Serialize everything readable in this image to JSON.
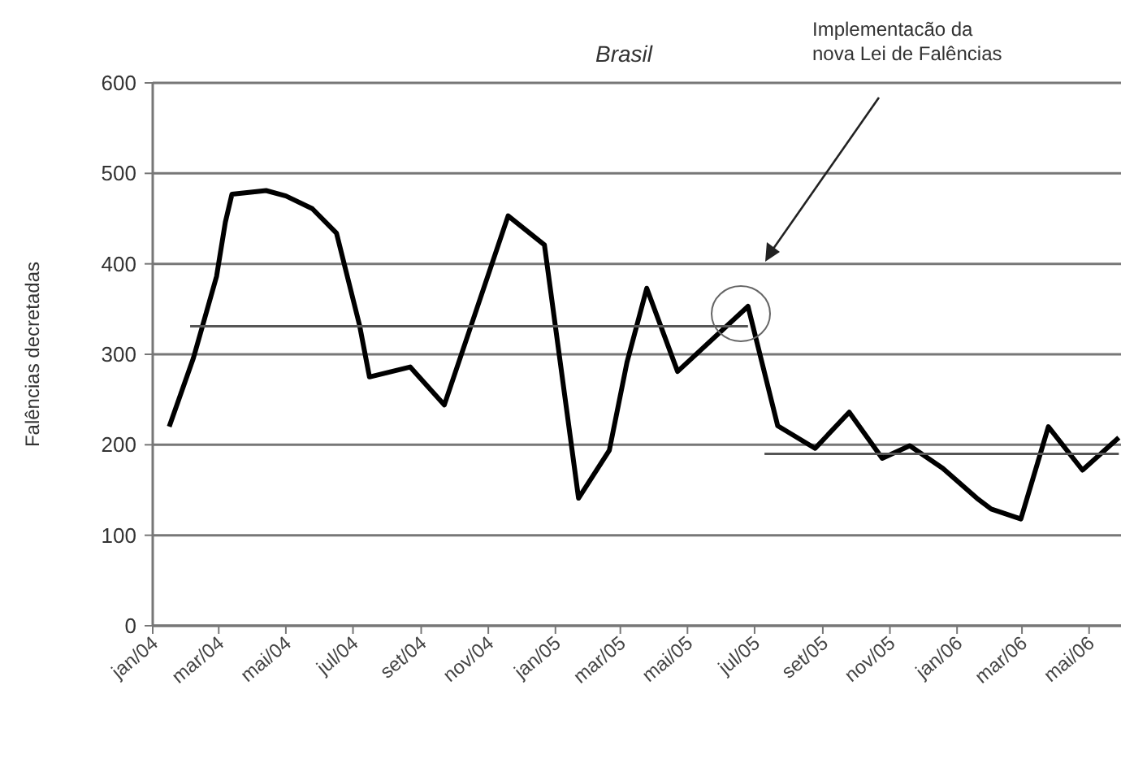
{
  "chart_data": {
    "type": "line",
    "title": "Brasil",
    "ylabel": "Falências decretadas",
    "annotations": [
      "Implementacão da\nnova Lei de Falências"
    ],
    "xlim": [
      "2004-01-01",
      "2006-05-30"
    ],
    "xticks": [
      {
        "value": "2004-01-01",
        "label": "jan/04"
      },
      {
        "value": "2004-03-01",
        "label": "mar/04"
      },
      {
        "value": "2004-05-01",
        "label": "mai/04"
      },
      {
        "value": "2004-07-01",
        "label": "jul/04"
      },
      {
        "value": "2004-09-01",
        "label": "set/04"
      },
      {
        "value": "2004-11-01",
        "label": "nov/04"
      },
      {
        "value": "2005-01-01",
        "label": "jan/05"
      },
      {
        "value": "2005-03-01",
        "label": "mar/05"
      },
      {
        "value": "2005-05-01",
        "label": "mai/05"
      },
      {
        "value": "2005-07-01",
        "label": "jul/05"
      },
      {
        "value": "2005-09-01",
        "label": "set/05"
      },
      {
        "value": "2005-11-01",
        "label": "nov/05"
      },
      {
        "value": "2006-01-01",
        "label": "jan/06"
      },
      {
        "value": "2006-03-01",
        "label": "mar/06"
      },
      {
        "value": "2006-05-01",
        "label": "mai/06"
      }
    ],
    "ylim": [
      0,
      600
    ],
    "yticks": [
      0,
      100,
      200,
      300,
      400,
      500,
      600
    ],
    "grid": "y",
    "marker": "none",
    "line_style": "solid",
    "series": [
      {
        "color": "#000000",
        "x": [
          "2004-01-16",
          "2004-02-07",
          "2004-02-28",
          "2004-03-07",
          "2004-03-13",
          "2004-04-13",
          "2004-05-01",
          "2004-05-25",
          "2004-06-16",
          "2004-07-07",
          "2004-07-16",
          "2004-08-22",
          "2004-09-22",
          "2004-11-19",
          "2004-12-22",
          "2005-01-22",
          "2005-02-19",
          "2005-03-07",
          "2005-03-25",
          "2005-04-22",
          "2005-06-25",
          "2005-07-22",
          "2005-08-25",
          "2005-09-25",
          "2005-10-25",
          "2005-11-19",
          "2005-12-19",
          "2006-01-19",
          "2006-02-01",
          "2006-02-28",
          "2006-03-25",
          "2006-04-25",
          "2006-05-28"
        ],
        "values": [
          220,
          296,
          386,
          446,
          477,
          481,
          475,
          461,
          434,
          332,
          275,
          286,
          244,
          453,
          421,
          141,
          194,
          291,
          373,
          281,
          353,
          221,
          196,
          236,
          185,
          199,
          174,
          141,
          129,
          118,
          220,
          172,
          208
        ]
      },
      {
        "type": "line",
        "color": "#555555",
        "x": [
          "2004-02-04",
          "2005-06-25"
        ],
        "values": [
          331,
          331
        ]
      },
      {
        "type": "line",
        "color": "#555555",
        "x": [
          "2005-07-10",
          "2006-05-28"
        ],
        "values": [
          190,
          190
        ]
      }
    ]
  }
}
